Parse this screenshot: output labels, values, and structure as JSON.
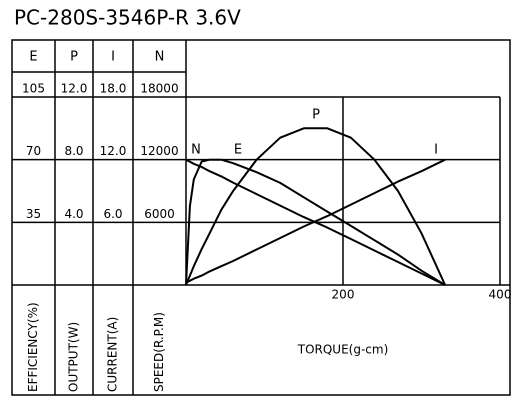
{
  "chart_data": {
    "type": "line",
    "title": "PC-280S-3546P-R   3.6V",
    "x_label": "TORQUE(g-cm)",
    "xlim": [
      0,
      400
    ],
    "xticks": [
      200,
      400
    ],
    "x": [
      0,
      5,
      10,
      20,
      30,
      45,
      60,
      90,
      120,
      150,
      180,
      210,
      240,
      270,
      300,
      330
    ],
    "axes": [
      {
        "header": "E",
        "label": "EFFICIENCY(%)",
        "lim": [
          0,
          105
        ],
        "ticks": [
          35,
          70,
          105
        ]
      },
      {
        "header": "P",
        "label": "OUTPUT(W)",
        "lim": [
          0,
          12
        ],
        "ticks": [
          {
            "value": 4,
            "label": "4.0"
          },
          {
            "value": 8,
            "label": "8.0"
          },
          {
            "value": 12,
            "label": "12.0"
          }
        ]
      },
      {
        "header": "I",
        "label": "CURRENT(A)",
        "lim": [
          0,
          18
        ],
        "ticks": [
          {
            "value": 6,
            "label": "6.0"
          },
          {
            "value": 12,
            "label": "12.0"
          },
          {
            "value": 18,
            "label": "18.0"
          }
        ]
      },
      {
        "header": "N",
        "label": "SPEED(R.P.M)",
        "lim": [
          0,
          18000
        ],
        "ticks": [
          6000,
          12000,
          18000
        ]
      }
    ],
    "series": [
      {
        "name": "N",
        "color": "#000000",
        "values": [
          12000,
          11800,
          11600,
          11300,
          10900,
          10400,
          9800,
          8700,
          7600,
          6500,
          5500,
          4400,
          3300,
          2200,
          1100,
          0
        ]
      },
      {
        "name": "E",
        "color": "#000000",
        "values": [
          0,
          44,
          59,
          69,
          70,
          70,
          68,
          63,
          57,
          49,
          41,
          33,
          25,
          17,
          8,
          0
        ]
      },
      {
        "name": "P",
        "color": "#000000",
        "values": [
          0,
          0.6,
          1.2,
          2.3,
          3.3,
          4.8,
          6.0,
          8.0,
          9.4,
          10.0,
          10.0,
          9.4,
          8.0,
          6.0,
          3.3,
          0
        ]
      },
      {
        "name": "I",
        "color": "#000000",
        "values": [
          0.2,
          0.4,
          0.6,
          0.9,
          1.3,
          1.8,
          2.3,
          3.4,
          4.5,
          5.6,
          6.6,
          7.7,
          8.8,
          9.9,
          10.9,
          12.0
        ]
      }
    ],
    "grid": true
  }
}
